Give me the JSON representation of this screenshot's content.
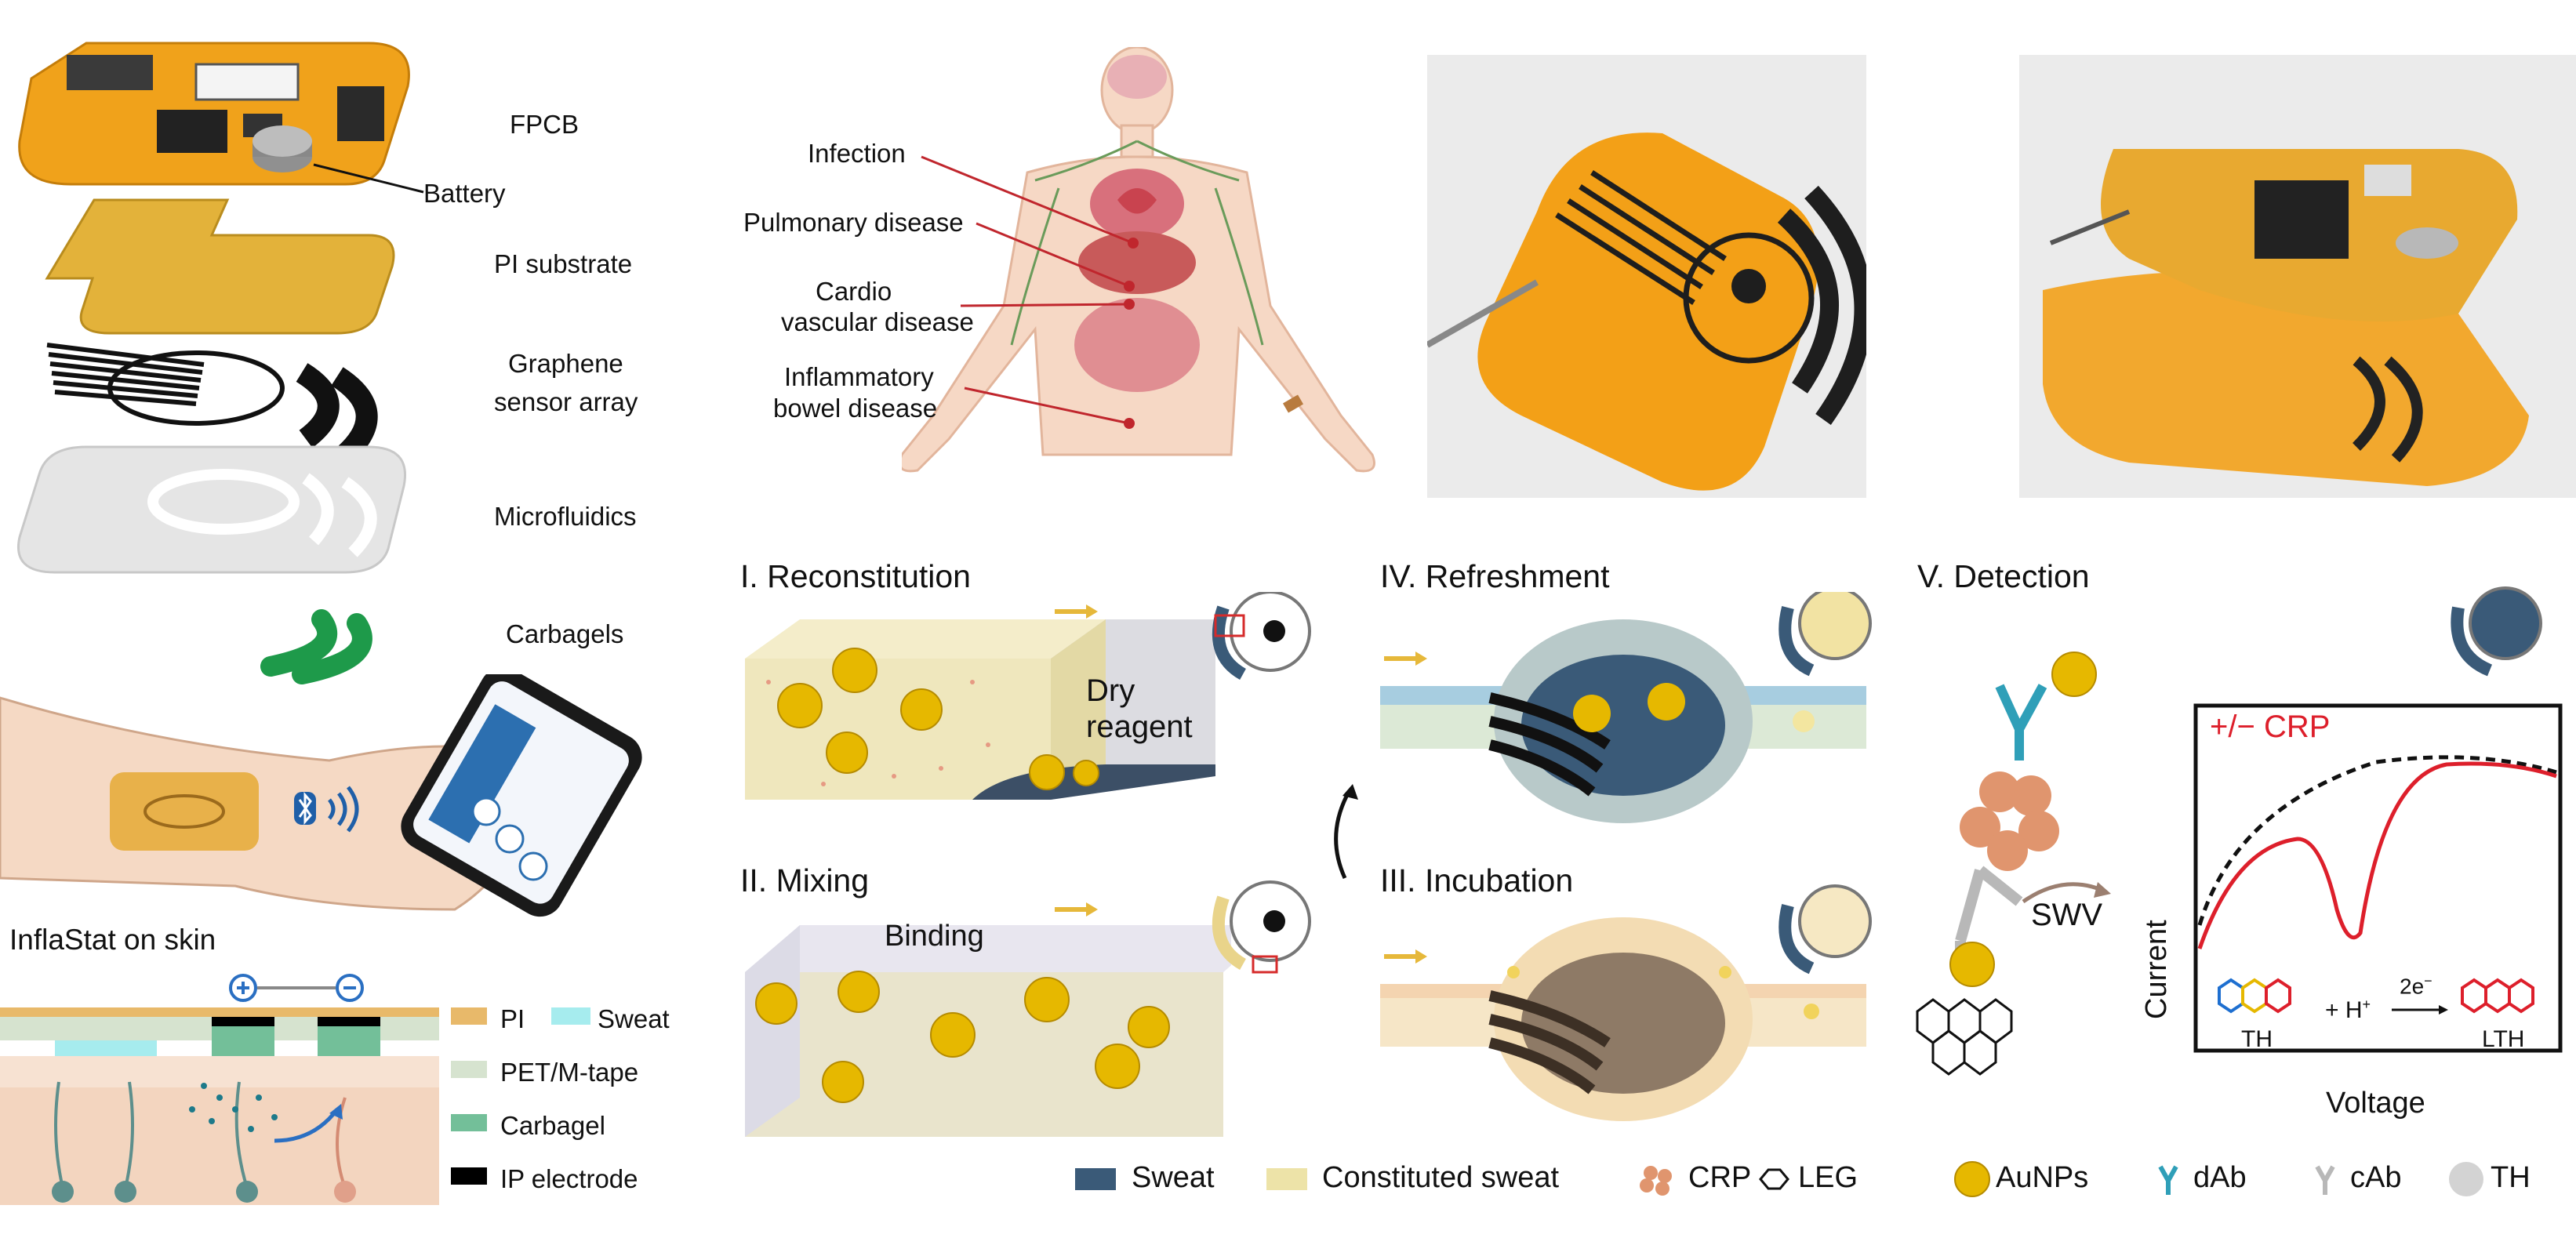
{
  "layers": {
    "fpcb": "FPCB",
    "battery": "Battery",
    "pi_substrate": "PI substrate",
    "graphene_l1": "Graphene",
    "graphene_l2": "sensor array",
    "microfluidics": "Microfluidics",
    "carbagels": "Carbagels"
  },
  "on_skin": {
    "title": "InflaStat on skin",
    "legend": {
      "pi": "PI",
      "sweat": "Sweat",
      "pet": "PET/M-tape",
      "carbagel": "Carbagel",
      "ip": "IP electrode"
    },
    "colors": {
      "pi": "#e8b96a",
      "sweat": "#a6ecee",
      "pet": "#d6e3cf",
      "carbagel": "#73bf99",
      "ip": "#000000"
    }
  },
  "body": {
    "infection": "Infection",
    "pulmonary": "Pulmonary disease",
    "cardio_l1": "Cardio",
    "cardio_l2": "vascular disease",
    "ibd_l1": "Inflammatory",
    "ibd_l2": "bowel disease"
  },
  "steps": {
    "s1": "I. Reconstitution",
    "s2": "II. Mixing",
    "s3": "III. Incubation",
    "s4": "IV. Refreshment",
    "s5": "V. Detection",
    "dry_l1": "Dry",
    "dry_l2": "reagent",
    "binding": "Binding"
  },
  "detection": {
    "swv": "SWV",
    "crp_label": "+/− CRP",
    "ylabel": "Current",
    "xlabel": "Voltage",
    "th": "TH",
    "lth": "LTH",
    "h_plus": "+ H",
    "h_sup": "+",
    "electrons": "2e",
    "electrons_sup": "−"
  },
  "legend": {
    "sweat": "Sweat",
    "constituted": "Constituted sweat",
    "crp": "CRP",
    "leg": "LEG",
    "aunps": "AuNPs",
    "dab": "dAb",
    "cab": "cAb",
    "th": "TH",
    "colors": {
      "sweat": "#3a5a78",
      "constituted": "#ede3a8",
      "crp": "#e0956e",
      "aunps": "#e6b800",
      "dab": "#2f9fb8",
      "cab": "#b8b8b8",
      "th": "#cfcfcf"
    }
  }
}
